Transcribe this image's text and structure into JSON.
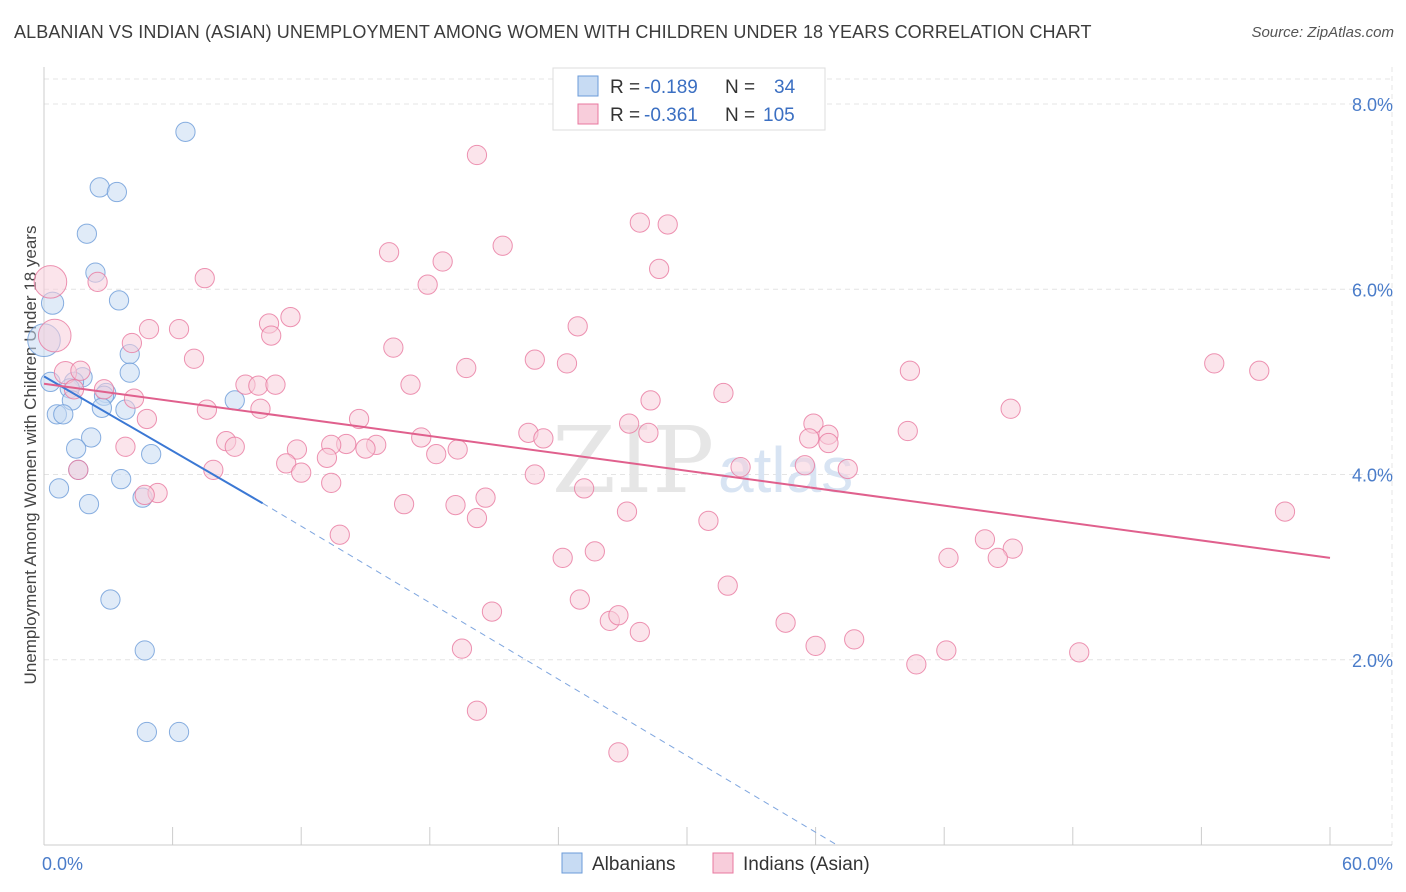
{
  "title": "ALBANIAN VS INDIAN (ASIAN) UNEMPLOYMENT AMONG WOMEN WITH CHILDREN UNDER 18 YEARS CORRELATION CHART",
  "source": "Source: ZipAtlas.com",
  "watermark": {
    "zip": "ZIP",
    "atlas": "atlas"
  },
  "legend_top": [
    {
      "r_label": "R =",
      "r_value": "-0.189",
      "n_label": "N =",
      "n_value": "34",
      "color": "#6b9bd8",
      "fill": "#c7dbf3"
    },
    {
      "r_label": "R =",
      "r_value": "-0.361",
      "n_label": "N =",
      "n_value": "105",
      "color": "#e8789f",
      "fill": "#f8cddb"
    }
  ],
  "legend_bottom": [
    {
      "label": "Albanians",
      "fill": "#c7dbf3",
      "color": "#6b9bd8"
    },
    {
      "label": "Indians (Asian)",
      "fill": "#f8cddb",
      "color": "#e8789f"
    }
  ],
  "chart_data": {
    "type": "scatter",
    "title": "ALBANIAN VS INDIAN (ASIAN) UNEMPLOYMENT AMONG WOMEN WITH CHILDREN UNDER 18 YEARS CORRELATION CHART",
    "xlabel": "",
    "ylabel": "Unemployment Among Women with Children Under 18 years",
    "xlim": [
      0,
      60
    ],
    "ylim": [
      0,
      8.4
    ],
    "x_tick_labels": [
      "0.0%",
      "60.0%"
    ],
    "y_ticks": [
      2,
      4,
      6,
      8
    ],
    "y_tick_labels": [
      "2.0%",
      "4.0%",
      "6.0%",
      "8.0%"
    ],
    "grid": true,
    "legend_placement": "top-center",
    "series": [
      {
        "name": "Albanians",
        "color": "#6b9bd8",
        "fill": "#c7dbf3",
        "trend": {
          "x0": 0,
          "y0": 5.06,
          "x1": 10.2,
          "y1": 3.69,
          "dash_to_x": 37.0,
          "dash_to_y": 0.0
        },
        "points": [
          [
            6.6,
            7.7,
            13
          ],
          [
            2.6,
            7.1,
            13
          ],
          [
            3.4,
            7.05,
            13
          ],
          [
            2.0,
            6.6,
            13
          ],
          [
            2.4,
            6.18,
            13
          ],
          [
            0.4,
            5.85,
            15
          ],
          [
            3.5,
            5.88,
            13
          ],
          [
            0.0,
            5.45,
            22
          ],
          [
            4.0,
            5.3,
            13
          ],
          [
            4.0,
            5.1,
            13
          ],
          [
            0.3,
            5.0,
            13
          ],
          [
            1.8,
            5.05,
            13
          ],
          [
            1.4,
            5.0,
            13
          ],
          [
            1.2,
            4.93,
            13
          ],
          [
            1.3,
            4.8,
            13
          ],
          [
            2.9,
            4.88,
            13
          ],
          [
            2.8,
            4.85,
            13
          ],
          [
            8.9,
            4.8,
            13
          ],
          [
            2.7,
            4.72,
            13
          ],
          [
            3.8,
            4.7,
            13
          ],
          [
            0.6,
            4.65,
            13
          ],
          [
            0.9,
            4.65,
            13
          ],
          [
            2.2,
            4.4,
            13
          ],
          [
            1.5,
            4.28,
            13
          ],
          [
            5.0,
            4.22,
            13
          ],
          [
            1.6,
            4.05,
            13
          ],
          [
            3.6,
            3.95,
            13
          ],
          [
            0.7,
            3.85,
            13
          ],
          [
            4.6,
            3.75,
            13
          ],
          [
            2.1,
            3.68,
            13
          ],
          [
            3.1,
            2.65,
            13
          ],
          [
            4.7,
            2.1,
            13
          ],
          [
            4.8,
            1.22,
            13
          ],
          [
            6.3,
            1.22,
            13
          ]
        ]
      },
      {
        "name": "Indians (Asian)",
        "color": "#e8789f",
        "fill": "#f8cddb",
        "trend": {
          "x0": 0,
          "y0": 4.98,
          "x1": 60,
          "y1": 3.1
        },
        "points": [
          [
            20.2,
            7.45,
            13
          ],
          [
            27.8,
            6.72,
            13
          ],
          [
            29.1,
            6.7,
            13
          ],
          [
            21.4,
            6.47,
            13
          ],
          [
            16.1,
            6.4,
            13
          ],
          [
            18.6,
            6.3,
            13
          ],
          [
            28.7,
            6.22,
            13
          ],
          [
            7.5,
            6.12,
            13
          ],
          [
            0.3,
            6.08,
            22
          ],
          [
            2.5,
            6.08,
            13
          ],
          [
            17.9,
            6.05,
            13
          ],
          [
            24.9,
            5.6,
            13
          ],
          [
            11.5,
            5.7,
            13
          ],
          [
            10.5,
            5.63,
            13
          ],
          [
            6.3,
            5.57,
            13
          ],
          [
            4.9,
            5.57,
            13
          ],
          [
            10.6,
            5.5,
            13
          ],
          [
            0.5,
            5.5,
            22
          ],
          [
            4.1,
            5.42,
            13
          ],
          [
            16.3,
            5.37,
            13
          ],
          [
            22.9,
            5.24,
            13
          ],
          [
            7.0,
            5.25,
            13
          ],
          [
            24.4,
            5.2,
            13
          ],
          [
            19.7,
            5.15,
            13
          ],
          [
            54.6,
            5.2,
            13
          ],
          [
            56.7,
            5.12,
            13
          ],
          [
            40.4,
            5.12,
            13
          ],
          [
            1.0,
            5.1,
            15
          ],
          [
            1.7,
            5.12,
            13
          ],
          [
            9.4,
            4.97,
            13
          ],
          [
            10.0,
            4.96,
            13
          ],
          [
            10.8,
            4.97,
            13
          ],
          [
            17.1,
            4.97,
            13
          ],
          [
            1.4,
            4.92,
            13
          ],
          [
            2.8,
            4.92,
            13
          ],
          [
            31.7,
            4.88,
            13
          ],
          [
            4.2,
            4.82,
            13
          ],
          [
            28.3,
            4.8,
            13
          ],
          [
            45.1,
            4.71,
            13
          ],
          [
            7.6,
            4.7,
            13
          ],
          [
            10.1,
            4.71,
            13
          ],
          [
            14.7,
            4.6,
            13
          ],
          [
            4.8,
            4.6,
            13
          ],
          [
            35.9,
            4.55,
            13
          ],
          [
            27.3,
            4.55,
            13
          ],
          [
            40.3,
            4.47,
            13
          ],
          [
            28.2,
            4.45,
            13
          ],
          [
            22.6,
            4.45,
            13
          ],
          [
            36.6,
            4.43,
            13
          ],
          [
            35.7,
            4.39,
            13
          ],
          [
            23.3,
            4.39,
            13
          ],
          [
            17.6,
            4.4,
            13
          ],
          [
            8.5,
            4.36,
            13
          ],
          [
            14.1,
            4.33,
            13
          ],
          [
            13.4,
            4.32,
            13
          ],
          [
            36.6,
            4.34,
            13
          ],
          [
            15.5,
            4.32,
            13
          ],
          [
            15.0,
            4.28,
            13
          ],
          [
            3.8,
            4.3,
            13
          ],
          [
            8.9,
            4.3,
            13
          ],
          [
            11.8,
            4.27,
            13
          ],
          [
            18.3,
            4.22,
            13
          ],
          [
            19.3,
            4.27,
            13
          ],
          [
            13.2,
            4.18,
            13
          ],
          [
            11.3,
            4.12,
            13
          ],
          [
            1.6,
            4.05,
            13
          ],
          [
            35.5,
            4.1,
            13
          ],
          [
            32.5,
            4.08,
            13
          ],
          [
            37.5,
            4.06,
            13
          ],
          [
            7.9,
            4.05,
            13
          ],
          [
            12.0,
            4.02,
            13
          ],
          [
            22.9,
            4.0,
            13
          ],
          [
            5.3,
            3.8,
            13
          ],
          [
            13.4,
            3.91,
            13
          ],
          [
            25.2,
            3.85,
            13
          ],
          [
            4.7,
            3.78,
            13
          ],
          [
            20.6,
            3.75,
            13
          ],
          [
            16.8,
            3.68,
            13
          ],
          [
            19.2,
            3.67,
            13
          ],
          [
            57.9,
            3.6,
            13
          ],
          [
            27.2,
            3.6,
            13
          ],
          [
            20.2,
            3.53,
            13
          ],
          [
            31.0,
            3.5,
            13
          ],
          [
            13.8,
            3.35,
            13
          ],
          [
            45.2,
            3.2,
            13
          ],
          [
            43.9,
            3.3,
            13
          ],
          [
            25.7,
            3.17,
            13
          ],
          [
            24.2,
            3.1,
            13
          ],
          [
            44.5,
            3.1,
            13
          ],
          [
            42.2,
            3.1,
            13
          ],
          [
            25.0,
            2.65,
            13
          ],
          [
            31.9,
            2.8,
            13
          ],
          [
            20.9,
            2.52,
            13
          ],
          [
            26.4,
            2.42,
            13
          ],
          [
            26.8,
            2.48,
            13
          ],
          [
            34.6,
            2.4,
            13
          ],
          [
            27.8,
            2.3,
            13
          ],
          [
            36.0,
            2.15,
            13
          ],
          [
            42.1,
            2.1,
            13
          ],
          [
            37.8,
            2.22,
            13
          ],
          [
            48.3,
            2.08,
            13
          ],
          [
            19.5,
            2.12,
            13
          ],
          [
            40.7,
            1.95,
            13
          ],
          [
            20.2,
            1.45,
            13
          ],
          [
            26.8,
            1.0,
            13
          ]
        ]
      }
    ]
  }
}
